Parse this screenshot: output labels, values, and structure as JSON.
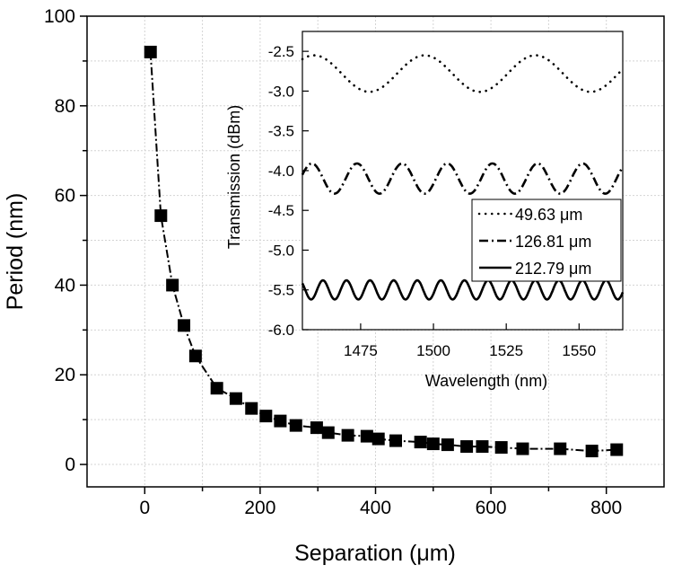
{
  "chart_data": [
    {
      "type": "scatter",
      "name": "main",
      "xlabel": "Separation (μm)",
      "ylabel": "Period (nm)",
      "xlim": [
        -100,
        900
      ],
      "ylim": [
        -5,
        100
      ],
      "xticks": [
        0,
        200,
        400,
        600,
        800
      ],
      "yticks": [
        0,
        20,
        40,
        60,
        80,
        100
      ],
      "grid": true,
      "series": [
        {
          "name": "Period",
          "marker": "square",
          "line": "dash-dot",
          "x": [
            10,
            28,
            48,
            68,
            88,
            125,
            158,
            185,
            210,
            235,
            262,
            298,
            318,
            352,
            385,
            405,
            435,
            478,
            500,
            525,
            558,
            585,
            618,
            655,
            720,
            775,
            818
          ],
          "y": [
            92,
            55.5,
            40,
            31,
            24.2,
            17,
            14.7,
            12.5,
            10.8,
            9.7,
            8.7,
            8.2,
            7.1,
            6.5,
            6.3,
            5.7,
            5.3,
            5.0,
            4.6,
            4.4,
            4.0,
            4.0,
            3.8,
            3.5,
            3.5,
            3.0,
            3.3
          ]
        }
      ]
    },
    {
      "type": "line",
      "name": "inset",
      "xlabel": "Wavelength (nm)",
      "ylabel": "Transmission (dBm)",
      "xlim": [
        1455,
        1565
      ],
      "ylim": [
        -6.0,
        -2.25
      ],
      "xticks": [
        1475,
        1500,
        1525,
        1550
      ],
      "yticks": [
        -2.5,
        -3.0,
        -3.5,
        -4.0,
        -4.5,
        -5.0,
        -5.5,
        -6.0
      ],
      "ytick_labels": [
        "-2.5",
        "-3.0",
        "-3.5",
        "-4.0",
        "-4.5",
        "-5.0",
        "-5.5",
        "-6.0"
      ],
      "legend_position": "bottom-right",
      "series": [
        {
          "name": "49.63 μm",
          "style": "dotted",
          "mean": -2.78,
          "amplitude": 0.23,
          "period_nm": 38,
          "phase_nm": 1478
        },
        {
          "name": "126.81 μm",
          "style": "dash-dot",
          "mean": -4.1,
          "amplitude": 0.19,
          "period_nm": 15.5,
          "phase_nm": 1466
        },
        {
          "name": "212.79 μm",
          "style": "solid",
          "mean": -5.5,
          "amplitude": 0.12,
          "period_nm": 8.1,
          "phase_nm": 1458
        }
      ]
    }
  ]
}
